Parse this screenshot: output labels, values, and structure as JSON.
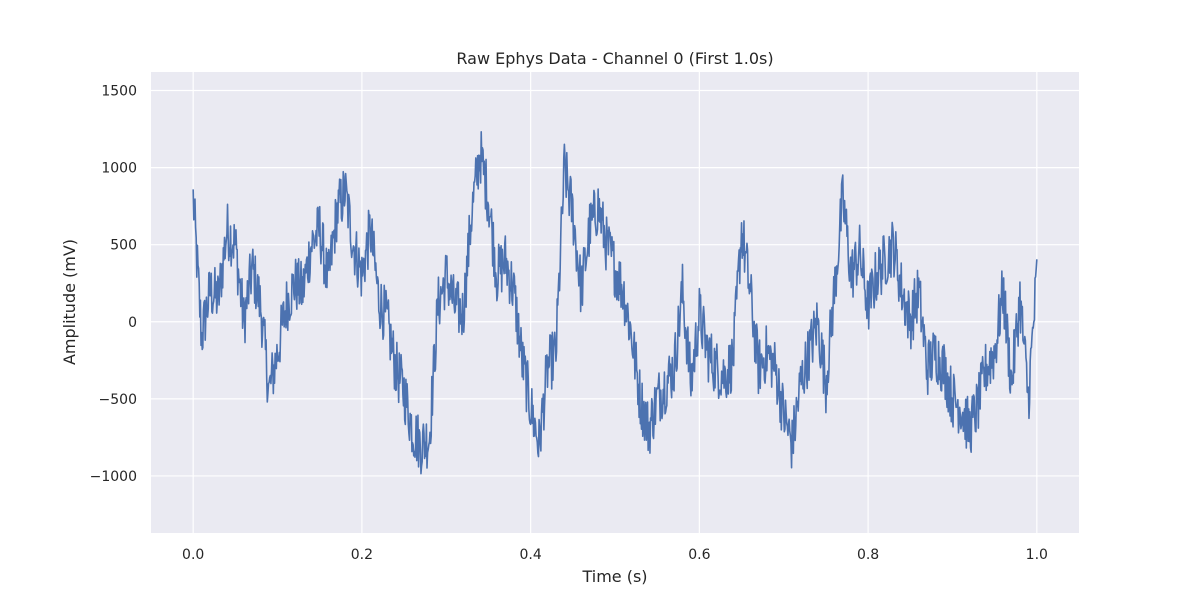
{
  "chart_data": {
    "type": "line",
    "title": "Raw Ephys Data - Channel 0 (First 1.0s)",
    "xlabel": "Time (s)",
    "ylabel": "Amplitude (mV)",
    "xlim": [
      -0.05,
      1.05
    ],
    "ylim": [
      -1370,
      1620
    ],
    "xticks": [
      0.0,
      0.2,
      0.4,
      0.6,
      0.8,
      1.0
    ],
    "xtick_labels": [
      "0.0",
      "0.2",
      "0.4",
      "0.6",
      "0.8",
      "1.0"
    ],
    "yticks": [
      -1000,
      -500,
      0,
      500,
      1000,
      1500
    ],
    "ytick_labels": [
      "−1000",
      "−500",
      "0",
      "500",
      "1000",
      "1500"
    ],
    "grid": true,
    "series": [
      {
        "color": "#4c72b0",
        "x": [
          0.0,
          0.01,
          0.02,
          0.03,
          0.04,
          0.05,
          0.06,
          0.07,
          0.08,
          0.09,
          0.1,
          0.11,
          0.12,
          0.13,
          0.14,
          0.15,
          0.16,
          0.17,
          0.18,
          0.19,
          0.2,
          0.21,
          0.22,
          0.23,
          0.24,
          0.25,
          0.26,
          0.27,
          0.28,
          0.29,
          0.3,
          0.31,
          0.32,
          0.33,
          0.34,
          0.35,
          0.36,
          0.37,
          0.38,
          0.39,
          0.4,
          0.41,
          0.42,
          0.43,
          0.44,
          0.45,
          0.46,
          0.47,
          0.48,
          0.49,
          0.5,
          0.51,
          0.52,
          0.53,
          0.54,
          0.55,
          0.56,
          0.57,
          0.58,
          0.59,
          0.6,
          0.61,
          0.62,
          0.63,
          0.64,
          0.65,
          0.66,
          0.67,
          0.68,
          0.69,
          0.7,
          0.71,
          0.72,
          0.73,
          0.74,
          0.75,
          0.76,
          0.77,
          0.78,
          0.79,
          0.8,
          0.81,
          0.82,
          0.83,
          0.84,
          0.85,
          0.86,
          0.87,
          0.88,
          0.89,
          0.9,
          0.91,
          0.92,
          0.93,
          0.94,
          0.95,
          0.96,
          0.97,
          0.98,
          0.99,
          1.0
        ],
        "y": [
          800,
          -100,
          200,
          150,
          600,
          500,
          0,
          350,
          100,
          -450,
          -200,
          100,
          250,
          200,
          500,
          600,
          250,
          700,
          850,
          500,
          300,
          600,
          150,
          0,
          -300,
          -450,
          -700,
          -800,
          -750,
          100,
          300,
          100,
          50,
          700,
          1100,
          800,
          300,
          400,
          200,
          -250,
          -550,
          -800,
          -300,
          -200,
          1000,
          700,
          200,
          600,
          750,
          500,
          350,
          200,
          -100,
          -500,
          -700,
          -500,
          -400,
          -300,
          200,
          -400,
          50,
          -200,
          -300,
          -350,
          -250,
          600,
          200,
          -300,
          -200,
          -300,
          -600,
          -800,
          -400,
          -200,
          0,
          -400,
          200,
          800,
          300,
          450,
          100,
          300,
          400,
          500,
          200,
          0,
          200,
          -300,
          -200,
          -300,
          -500,
          -550,
          -700,
          -550,
          -300,
          -200,
          200,
          -400,
          150,
          -500,
          300
        ]
      }
    ]
  }
}
